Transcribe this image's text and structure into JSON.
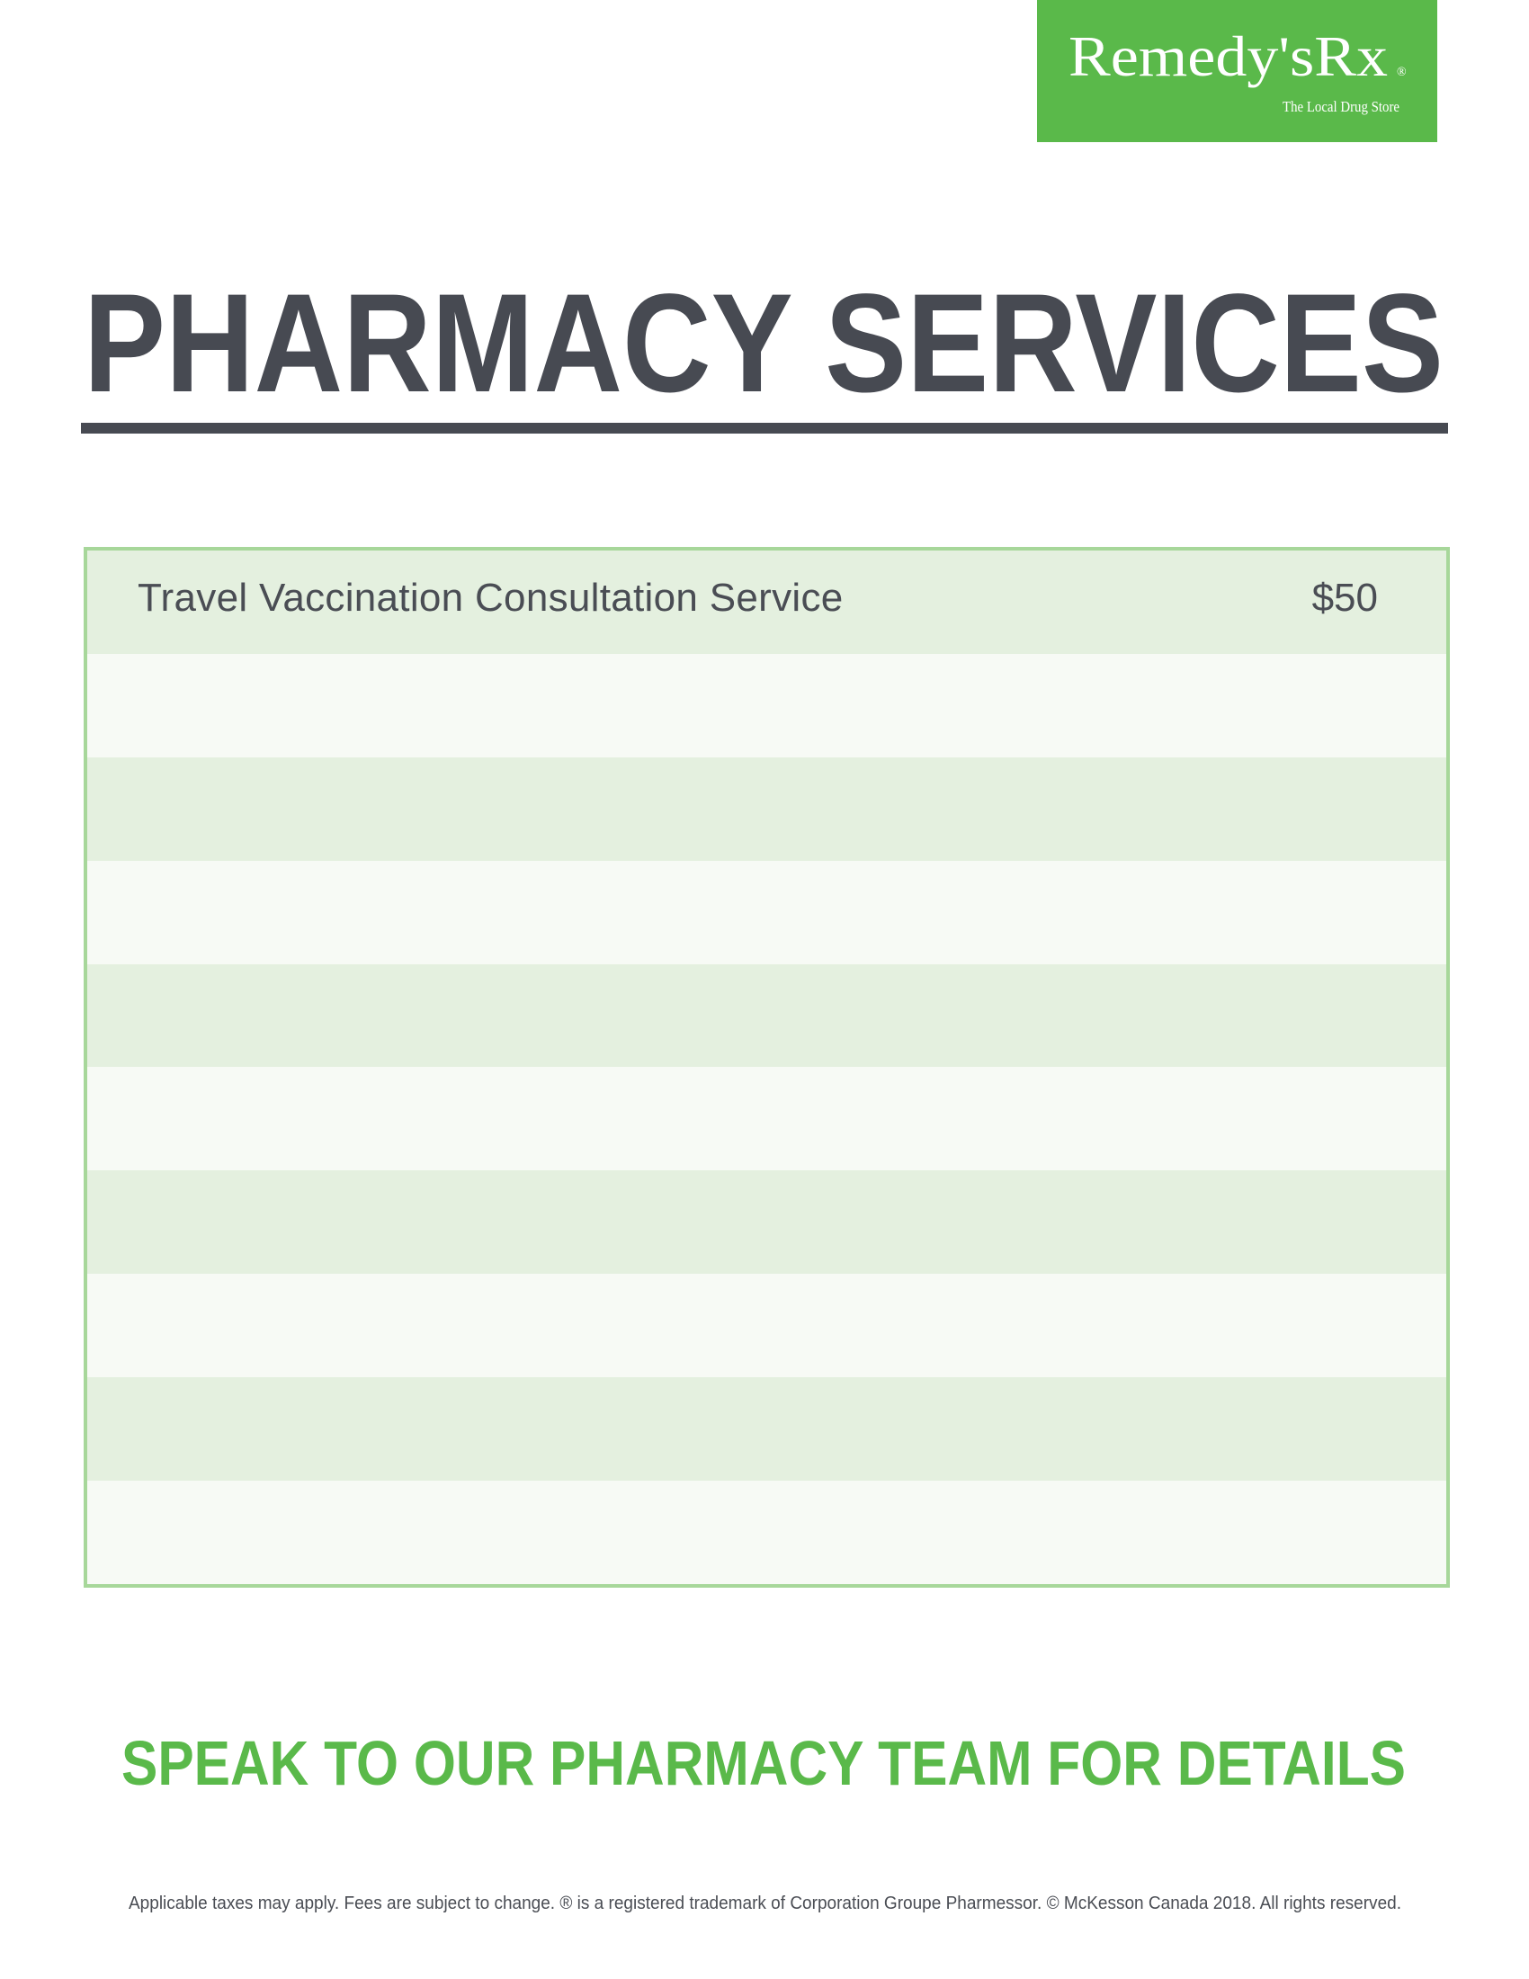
{
  "logo": {
    "brand": "Remedy'sRx",
    "registered": "®",
    "tagline": "The Local Drug Store",
    "color": "#5ab94a"
  },
  "title": "PHARMACY SERVICES",
  "services": [
    {
      "name": "Travel Vaccination Consultation Service",
      "price": "$50"
    },
    {
      "name": "",
      "price": ""
    },
    {
      "name": "",
      "price": ""
    },
    {
      "name": "",
      "price": ""
    },
    {
      "name": "",
      "price": ""
    },
    {
      "name": "",
      "price": ""
    },
    {
      "name": "",
      "price": ""
    },
    {
      "name": "",
      "price": ""
    },
    {
      "name": "",
      "price": ""
    },
    {
      "name": "",
      "price": ""
    }
  ],
  "cta": "SPEAK TO OUR PHARMACY TEAM FOR DETAILS",
  "footer": "Applicable taxes may apply. Fees are subject to change. ® is a registered trademark of Corporation Groupe Pharmessor. © McKesson Canada 2018. All rights reserved.",
  "colors": {
    "green": "#5ab94a",
    "dark": "#474a52",
    "row_alt": "#e4f0df",
    "border": "#a7d79a"
  }
}
